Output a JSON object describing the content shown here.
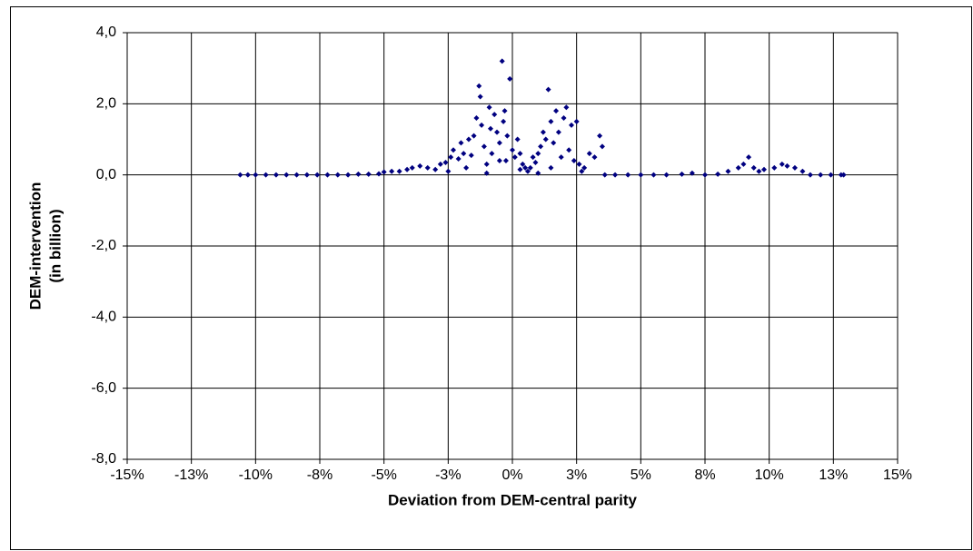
{
  "chart_data": {
    "type": "scatter",
    "xlabel": "Deviation from DEM-central parity",
    "ylabel": [
      "DEM-intervention",
      "(in billion)"
    ],
    "color": "#000080",
    "grid": true,
    "xlim": [
      -15,
      15
    ],
    "ylim": [
      -8,
      4
    ],
    "xticks": [
      {
        "value": -15,
        "label": "-15%"
      },
      {
        "value": -12.5,
        "label": "-13%"
      },
      {
        "value": -10,
        "label": "-10%"
      },
      {
        "value": -7.5,
        "label": "-8%"
      },
      {
        "value": -5,
        "label": "-5%"
      },
      {
        "value": -2.5,
        "label": "-3%"
      },
      {
        "value": 0,
        "label": "0%"
      },
      {
        "value": 2.5,
        "label": "3%"
      },
      {
        "value": 5,
        "label": "5%"
      },
      {
        "value": 7.5,
        "label": "8%"
      },
      {
        "value": 10,
        "label": "10%"
      },
      {
        "value": 12.5,
        "label": "13%"
      },
      {
        "value": 15,
        "label": "15%"
      }
    ],
    "yticks": [
      {
        "value": 4,
        "label": "4,0"
      },
      {
        "value": 2,
        "label": "2,0"
      },
      {
        "value": 0,
        "label": "0,0"
      },
      {
        "value": -2,
        "label": "-2,0"
      },
      {
        "value": -4,
        "label": "-4,0"
      },
      {
        "value": -6,
        "label": "-6,0"
      },
      {
        "value": -8,
        "label": "-8,0"
      }
    ],
    "x": [
      -10.6,
      -10.3,
      -10.0,
      -9.6,
      -9.2,
      -8.8,
      -8.4,
      -8.0,
      -7.6,
      -7.2,
      -6.8,
      -6.4,
      -6.0,
      -5.6,
      -5.2,
      -5.0,
      -4.7,
      -4.4,
      -4.1,
      -3.9,
      -3.6,
      -3.3,
      -3.0,
      -2.8,
      -2.6,
      -2.5,
      -2.4,
      -2.3,
      -2.1,
      -2.0,
      -1.9,
      -1.8,
      -1.7,
      -1.6,
      -1.5,
      -1.4,
      -1.3,
      -1.25,
      -1.2,
      -1.1,
      -1.0,
      -1.0,
      -0.9,
      -0.85,
      -0.8,
      -0.7,
      -0.6,
      -0.5,
      -0.5,
      -0.4,
      -0.35,
      -0.3,
      -0.25,
      -0.2,
      -0.1,
      0,
      0.1,
      0.2,
      0.3,
      0.3,
      0.4,
      0.5,
      0.6,
      0.7,
      0.8,
      0.9,
      1.0,
      1.0,
      1.1,
      1.2,
      1.3,
      1.4,
      1.5,
      1.5,
      1.6,
      1.7,
      1.8,
      1.9,
      2.0,
      2.1,
      2.2,
      2.3,
      2.4,
      2.5,
      2.6,
      2.7,
      2.8,
      3.0,
      3.2,
      3.4,
      3.5,
      3.6,
      4.0,
      4.5,
      5.0,
      5.5,
      6.0,
      6.6,
      7.0,
      7.5,
      8.0,
      8.4,
      8.8,
      9.0,
      9.2,
      9.4,
      9.6,
      9.8,
      10.2,
      10.5,
      10.7,
      11.0,
      11.3,
      11.6,
      12.0,
      12.4,
      12.8,
      12.9
    ],
    "values": [
      0,
      0,
      0,
      0,
      0,
      0,
      0,
      0,
      0,
      0,
      0,
      0,
      0.02,
      0.02,
      0.03,
      0.08,
      0.1,
      0.1,
      0.15,
      0.2,
      0.25,
      0.2,
      0.15,
      0.3,
      0.35,
      0.1,
      0.5,
      0.7,
      0.45,
      0.9,
      0.6,
      0.2,
      1.0,
      0.55,
      1.1,
      1.6,
      2.5,
      2.2,
      1.4,
      0.8,
      0.3,
      0.05,
      1.9,
      1.3,
      0.6,
      1.7,
      1.2,
      0.9,
      0.4,
      3.2,
      1.5,
      1.8,
      0.4,
      1.1,
      2.7,
      0.7,
      0.5,
      1.0,
      0.6,
      0.15,
      0.3,
      0.2,
      0.1,
      0.2,
      0.5,
      0.35,
      0.6,
      0.05,
      0.8,
      1.2,
      1.0,
      2.4,
      1.5,
      0.2,
      0.9,
      1.8,
      1.2,
      0.5,
      1.6,
      1.9,
      0.7,
      1.4,
      0.4,
      1.5,
      0.3,
      0.1,
      0.2,
      0.6,
      0.5,
      1.1,
      0.8,
      0,
      0,
      0,
      0,
      0,
      0,
      0.02,
      0.05,
      0,
      0.02,
      0.1,
      0.2,
      0.3,
      0.5,
      0.2,
      0.1,
      0.15,
      0.2,
      0.3,
      0.25,
      0.2,
      0.1,
      0,
      0,
      0,
      0,
      0
    ]
  }
}
